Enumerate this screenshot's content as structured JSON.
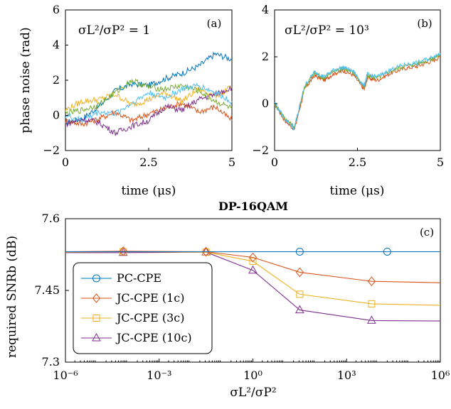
{
  "chart_data": [
    {
      "id": "a",
      "type": "line",
      "panel_label": "(a)",
      "annotation": "σL²/σP² = 1",
      "xlabel": "time (μs)",
      "ylabel": "phase noise (rad)",
      "xlim": [
        0,
        5
      ],
      "ylim": [
        -2,
        6
      ],
      "xticks": [
        "0",
        "2.5",
        "5"
      ],
      "yticks": [
        "−2",
        "0",
        "2",
        "4",
        "6"
      ],
      "series": [
        {
          "color": "#0072BD",
          "x": [
            0,
            0.5,
            1,
            1.5,
            2,
            2.5,
            3,
            3.5,
            4,
            4.5,
            5
          ],
          "y": [
            -0.4,
            -0.2,
            0.5,
            1.4,
            1.8,
            1.7,
            2.1,
            2.4,
            2.8,
            3.5,
            3.2
          ]
        },
        {
          "color": "#D95319",
          "x": [
            0,
            0.5,
            1,
            1.5,
            2,
            2.5,
            3,
            3.5,
            4,
            4.5,
            5
          ],
          "y": [
            -0.3,
            -0.5,
            -0.2,
            0.2,
            -0.3,
            0.1,
            0.4,
            0.7,
            0.2,
            0.5,
            -0.3
          ]
        },
        {
          "color": "#EDB120",
          "x": [
            0,
            0.5,
            1,
            1.5,
            2,
            2.5,
            3,
            3.5,
            4,
            4.5,
            5
          ],
          "y": [
            0.3,
            0.8,
            0.9,
            1.2,
            0.6,
            0.9,
            1.3,
            0.8,
            1.5,
            1.1,
            1.6
          ]
        },
        {
          "color": "#7E2F8E",
          "x": [
            0,
            0.5,
            1,
            1.5,
            2,
            2.5,
            3,
            3.5,
            4,
            4.5,
            5
          ],
          "y": [
            -0.5,
            -0.2,
            -0.4,
            -1.0,
            -0.6,
            -0.3,
            0.5,
            0.3,
            0.9,
            1.2,
            1.6
          ]
        },
        {
          "color": "#77AC30",
          "x": [
            0,
            0.5,
            1,
            1.5,
            2,
            2.5,
            3,
            3.5,
            4,
            4.5,
            5
          ],
          "y": [
            0.1,
            0.3,
            0.6,
            1.3,
            2.0,
            1.6,
            1.5,
            1.7,
            1.4,
            0.8,
            0.4
          ]
        },
        {
          "color": "#4DBEEE",
          "x": [
            0,
            0.5,
            1,
            1.5,
            2,
            2.5,
            3,
            3.5,
            4,
            4.5,
            5
          ],
          "y": [
            0.0,
            -0.3,
            0.2,
            0.1,
            0.7,
            1.3,
            1.0,
            1.5,
            1.7,
            1.3,
            0.8
          ]
        }
      ]
    },
    {
      "id": "b",
      "type": "line",
      "panel_label": "(b)",
      "annotation": "σL²/σP² = 10³",
      "xlabel": "time (μs)",
      "ylabel": "",
      "xlim": [
        0,
        5
      ],
      "ylim": [
        -2,
        4
      ],
      "xticks": [
        "0",
        "2.5",
        "5"
      ],
      "yticks": [
        "−2",
        "0",
        "2",
        "4"
      ],
      "series": [
        {
          "color": "#D95319",
          "x": [
            0,
            0.3,
            0.6,
            0.9,
            1.2,
            1.5,
            1.8,
            2.1,
            2.4,
            2.7,
            2.8,
            3.1,
            3.5,
            3.9,
            4.3,
            4.7,
            5
          ],
          "y": [
            0,
            -0.7,
            -1.1,
            0.6,
            1.2,
            1.0,
            1.3,
            1.4,
            1.2,
            0.6,
            1.1,
            1.0,
            1.3,
            1.5,
            1.6,
            1.8,
            2.0
          ]
        },
        {
          "color": "#77AC30",
          "x": [
            0,
            0.3,
            0.6,
            0.9,
            1.2,
            1.5,
            1.8,
            2.1,
            2.4,
            2.7,
            2.8,
            3.1,
            3.5,
            3.9,
            4.3,
            4.7,
            5
          ],
          "y": [
            0,
            -0.6,
            -1.0,
            0.7,
            1.3,
            1.1,
            1.4,
            1.5,
            1.3,
            0.7,
            1.2,
            1.1,
            1.4,
            1.6,
            1.7,
            1.9,
            2.1
          ]
        },
        {
          "color": "#4DBEEE",
          "x": [
            0,
            0.3,
            0.6,
            0.9,
            1.2,
            1.5,
            1.8,
            2.1,
            2.4,
            2.7,
            2.8,
            3.1,
            3.5,
            3.9,
            4.3,
            4.7,
            5
          ],
          "y": [
            0.05,
            -0.65,
            -1.05,
            0.75,
            1.35,
            1.15,
            1.45,
            1.55,
            1.35,
            0.75,
            1.25,
            1.15,
            1.45,
            1.65,
            1.75,
            1.95,
            2.15
          ]
        }
      ]
    },
    {
      "id": "c",
      "type": "line",
      "title": "DP-16QAM",
      "panel_label": "(c)",
      "xlabel": "σL²/σP²",
      "ylabel": "required SNRb (dB)",
      "xscale": "log",
      "xlim": [
        -6,
        6
      ],
      "ylim": [
        7.3,
        7.6
      ],
      "xticks": [
        "10⁻⁶",
        "10⁻³",
        "10⁰",
        "10³",
        "10⁶"
      ],
      "yticks": [
        "7.3",
        "7.45",
        "7.6"
      ],
      "legend_position": "bottom-left",
      "series": [
        {
          "name": "PC-CPE",
          "color": "#0072BD",
          "marker": "circle",
          "x": [
            -6,
            -4.15,
            -1.5,
            0,
            1.5,
            3.8,
            6
          ],
          "y": [
            7.531,
            7.531,
            7.531,
            7.531,
            7.531,
            7.531,
            7.531
          ],
          "marker_x": [
            1.5,
            4.3
          ]
        },
        {
          "name": "JC-CPE (1c)",
          "color": "#D95319",
          "marker": "diamond",
          "x": [
            -6,
            -4.15,
            -1.5,
            0,
            1.5,
            3.8,
            6
          ],
          "y": [
            7.531,
            7.532,
            7.531,
            7.519,
            7.488,
            7.469,
            7.466
          ]
        },
        {
          "name": "JC-CPE (3c)",
          "color": "#EDB120",
          "marker": "square",
          "x": [
            -6,
            -4.15,
            -1.5,
            0,
            1.5,
            3.8,
            6
          ],
          "y": [
            7.53,
            7.531,
            7.53,
            7.511,
            7.442,
            7.422,
            7.419
          ]
        },
        {
          "name": "JC-CPE (10c)",
          "color": "#7E2F8E",
          "marker": "triangle",
          "x": [
            -6,
            -4.15,
            -1.5,
            0,
            1.5,
            3.8,
            6
          ],
          "y": [
            7.529,
            7.529,
            7.53,
            7.492,
            7.409,
            7.387,
            7.386
          ]
        }
      ]
    }
  ]
}
